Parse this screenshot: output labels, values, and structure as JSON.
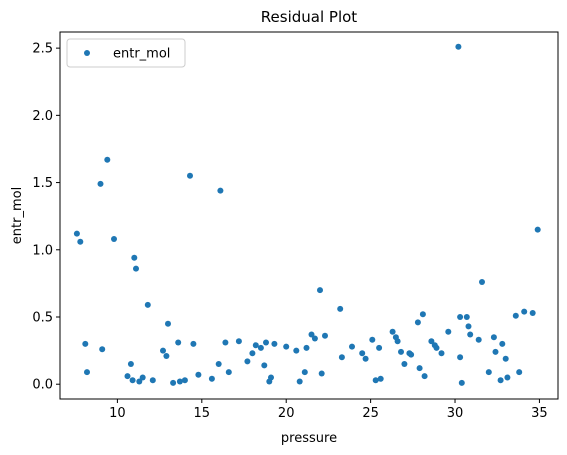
{
  "chart_data": {
    "type": "scatter",
    "title": "Residual Plot",
    "xlabel": "pressure",
    "ylabel": "entr_mol",
    "xlim": [
      6.6,
      36.1
    ],
    "ylim": [
      -0.11,
      2.62
    ],
    "xticks": [
      10,
      15,
      20,
      25,
      30,
      35
    ],
    "xtick_labels": [
      "10",
      "15",
      "20",
      "25",
      "30",
      "35"
    ],
    "yticks": [
      0.0,
      0.5,
      1.0,
      1.5,
      2.0,
      2.5
    ],
    "ytick_labels": [
      "0.0",
      "0.5",
      "1.0",
      "1.5",
      "2.0",
      "2.5"
    ],
    "grid": false,
    "legend": {
      "position": "upper-left"
    },
    "colors": {
      "series": "#1f77b4",
      "axes": "#000000"
    },
    "series": [
      {
        "name": "entr_mol",
        "points": [
          [
            7.6,
            1.12
          ],
          [
            7.8,
            1.06
          ],
          [
            8.1,
            0.3
          ],
          [
            8.2,
            0.09
          ],
          [
            9.0,
            1.49
          ],
          [
            9.1,
            0.26
          ],
          [
            9.4,
            1.67
          ],
          [
            9.8,
            1.08
          ],
          [
            10.6,
            0.06
          ],
          [
            10.8,
            0.15
          ],
          [
            10.9,
            0.03
          ],
          [
            11.0,
            0.94
          ],
          [
            11.1,
            0.86
          ],
          [
            11.3,
            0.02
          ],
          [
            11.5,
            0.05
          ],
          [
            11.8,
            0.59
          ],
          [
            12.1,
            0.03
          ],
          [
            12.7,
            0.25
          ],
          [
            12.9,
            0.21
          ],
          [
            13.0,
            0.45
          ],
          [
            13.3,
            0.01
          ],
          [
            13.6,
            0.31
          ],
          [
            13.7,
            0.02
          ],
          [
            14.0,
            0.03
          ],
          [
            14.3,
            1.55
          ],
          [
            14.5,
            0.3
          ],
          [
            14.8,
            0.07
          ],
          [
            15.6,
            0.04
          ],
          [
            16.0,
            0.15
          ],
          [
            16.1,
            1.44
          ],
          [
            16.4,
            0.31
          ],
          [
            16.6,
            0.09
          ],
          [
            17.2,
            0.32
          ],
          [
            17.7,
            0.17
          ],
          [
            18.0,
            0.23
          ],
          [
            18.2,
            0.29
          ],
          [
            18.5,
            0.27
          ],
          [
            18.7,
            0.14
          ],
          [
            18.8,
            0.31
          ],
          [
            19.0,
            0.02
          ],
          [
            19.1,
            0.05
          ],
          [
            19.3,
            0.3
          ],
          [
            20.0,
            0.28
          ],
          [
            20.6,
            0.25
          ],
          [
            20.8,
            0.02
          ],
          [
            21.1,
            0.09
          ],
          [
            21.2,
            0.27
          ],
          [
            21.5,
            0.37
          ],
          [
            21.7,
            0.34
          ],
          [
            22.0,
            0.7
          ],
          [
            22.1,
            0.08
          ],
          [
            22.3,
            0.36
          ],
          [
            23.2,
            0.56
          ],
          [
            23.3,
            0.2
          ],
          [
            23.9,
            0.28
          ],
          [
            24.5,
            0.23
          ],
          [
            24.7,
            0.19
          ],
          [
            25.1,
            0.33
          ],
          [
            25.3,
            0.03
          ],
          [
            25.5,
            0.27
          ],
          [
            25.6,
            0.04
          ],
          [
            26.3,
            0.39
          ],
          [
            26.5,
            0.35
          ],
          [
            26.6,
            0.32
          ],
          [
            26.8,
            0.24
          ],
          [
            27.0,
            0.15
          ],
          [
            27.3,
            0.23
          ],
          [
            27.4,
            0.22
          ],
          [
            27.8,
            0.46
          ],
          [
            27.9,
            0.12
          ],
          [
            28.1,
            0.52
          ],
          [
            28.2,
            0.06
          ],
          [
            28.6,
            0.32
          ],
          [
            28.8,
            0.29
          ],
          [
            28.9,
            0.27
          ],
          [
            29.2,
            0.23
          ],
          [
            29.6,
            0.39
          ],
          [
            30.2,
            2.51
          ],
          [
            30.3,
            0.5
          ],
          [
            30.3,
            0.2
          ],
          [
            30.4,
            0.01
          ],
          [
            30.7,
            0.5
          ],
          [
            30.8,
            0.43
          ],
          [
            30.9,
            0.37
          ],
          [
            31.4,
            0.33
          ],
          [
            31.6,
            0.76
          ],
          [
            32.0,
            0.09
          ],
          [
            32.3,
            0.35
          ],
          [
            32.4,
            0.24
          ],
          [
            32.7,
            0.03
          ],
          [
            32.8,
            0.3
          ],
          [
            33.0,
            0.19
          ],
          [
            33.1,
            0.05
          ],
          [
            33.6,
            0.51
          ],
          [
            33.8,
            0.09
          ],
          [
            34.1,
            0.54
          ],
          [
            34.6,
            0.53
          ],
          [
            34.9,
            1.15
          ]
        ]
      }
    ]
  }
}
